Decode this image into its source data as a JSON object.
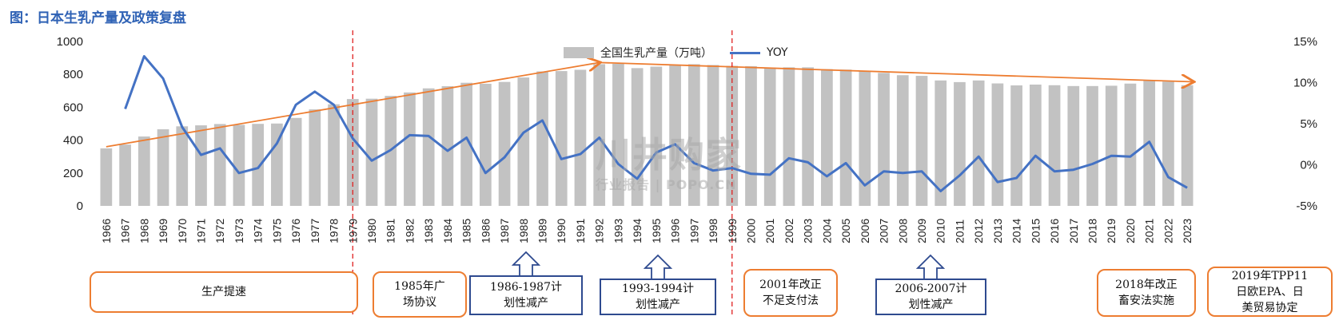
{
  "page_title": "图：日本生乳产量及政策复盘",
  "watermark": {
    "main": "川井购家",
    "sub": "行业报告 | POPO.CN"
  },
  "chart_data": {
    "type": "bar",
    "categories": [
      "1966",
      "1967",
      "1968",
      "1969",
      "1970",
      "1971",
      "1972",
      "1973",
      "1974",
      "1975",
      "1976",
      "1977",
      "1978",
      "1979",
      "1980",
      "1981",
      "1982",
      "1983",
      "1984",
      "1985",
      "1986",
      "1987",
      "1988",
      "1989",
      "1990",
      "1991",
      "1992",
      "1993",
      "1994",
      "1995",
      "1996",
      "1997",
      "1998",
      "1999",
      "2000",
      "2001",
      "2002",
      "2003",
      "2004",
      "2005",
      "2006",
      "2007",
      "2008",
      "2009",
      "2010",
      "2011",
      "2012",
      "2013",
      "2014",
      "2015",
      "2016",
      "2017",
      "2018",
      "2019",
      "2020",
      "2021",
      "2022",
      "2023"
    ],
    "series": [
      {
        "name": "全国生乳产量（万吨）",
        "type": "bar",
        "axis": "left",
        "values": [
          350,
          373,
          422,
          466,
          484,
          490,
          498,
          493,
          499,
          501,
          535,
          587,
          618,
          650,
          652,
          669,
          690,
          715,
          728,
          749,
          743,
          754,
          781,
          818,
          820,
          828,
          862,
          864,
          838,
          847,
          859,
          862,
          857,
          852,
          850,
          841,
          843,
          843,
          832,
          829,
          819,
          809,
          795,
          791,
          763,
          753,
          763,
          745,
          733,
          738,
          734,
          729,
          729,
          731,
          744,
          765,
          756,
          734
        ]
      },
      {
        "name": "YOY",
        "type": "line",
        "axis": "right",
        "values": [
          null,
          6.8,
          13.2,
          10.5,
          4.6,
          1.2,
          2.0,
          -1.0,
          -0.4,
          2.6,
          7.3,
          8.9,
          7.3,
          3.2,
          0.5,
          1.8,
          3.6,
          3.5,
          1.7,
          3.3,
          -1.0,
          0.9,
          3.9,
          5.4,
          0.7,
          1.3,
          3.3,
          0.1,
          -1.7,
          1.5,
          2.5,
          0.2,
          -0.7,
          -0.4,
          -1.1,
          -1.2,
          0.8,
          0.3,
          -1.4,
          0.2,
          -2.5,
          -0.8,
          -1.0,
          -0.8,
          -3.2,
          -1.3,
          1.0,
          -2.1,
          -1.6,
          1.1,
          -0.8,
          -0.6,
          0.1,
          1.1,
          1.0,
          2.8,
          -1.5,
          -2.8
        ]
      }
    ],
    "y_left": {
      "min": 0,
      "max": 1000,
      "ticks": [
        "0",
        "200",
        "400",
        "600",
        "800",
        "1000"
      ]
    },
    "y_right": {
      "min": -5,
      "max": 15,
      "ticks": [
        "-5%",
        "0%",
        "5%",
        "10%",
        "15%"
      ]
    },
    "legend": {
      "position": "top-center",
      "items": [
        "全国生乳产量（万吨）",
        "YOY"
      ]
    },
    "divider_years": [
      "1979",
      "1999"
    ],
    "trend_lines": [
      {
        "from": [
          "1966",
          360
        ],
        "to": [
          "1992",
          872
        ]
      },
      {
        "from": [
          "1992",
          872
        ],
        "to": [
          "2023",
          755
        ]
      }
    ],
    "grid": false
  },
  "annotations": [
    {
      "text": "生产提速",
      "style": "orange"
    },
    {
      "text": "1985年广\n场协议",
      "style": "orange"
    },
    {
      "text": "1986-1987计\n划性减产",
      "style": "blue-arrow"
    },
    {
      "text": "1993-1994计\n划性减产",
      "style": "blue-arrow"
    },
    {
      "text": "2001年改正\n不足支付法",
      "style": "orange"
    },
    {
      "text": "2006-2007计\n划性减产",
      "style": "blue-arrow"
    },
    {
      "text": "2018年改正\n畜安法实施",
      "style": "orange"
    },
    {
      "text": "2019年TPP11\n日欧EPA、日\n美贸易协定",
      "style": "orange"
    }
  ],
  "colors": {
    "bar": "#c2c2c2",
    "line": "#4472c4",
    "trend": "#ed7d31",
    "divider": "#e02020",
    "title": "#2f62b5",
    "box_orange": "#ed7d31",
    "box_blue": "#2e4a8f"
  }
}
